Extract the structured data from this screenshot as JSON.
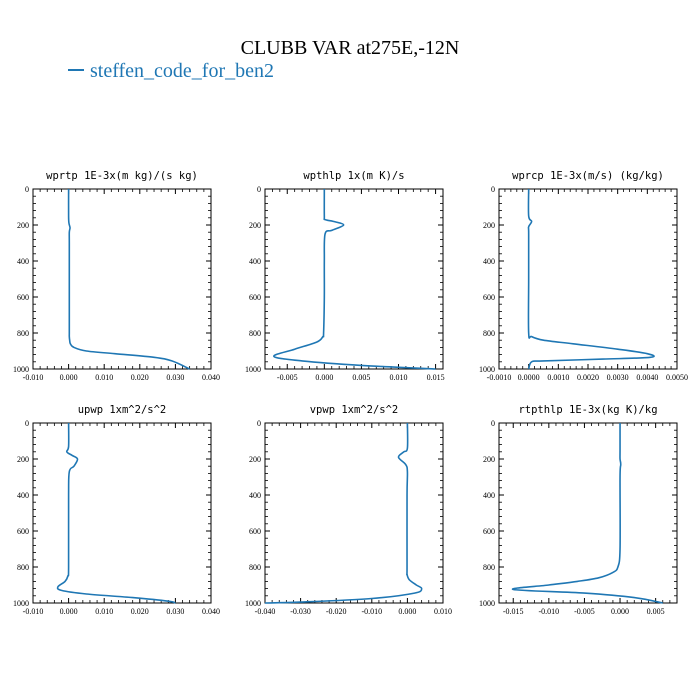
{
  "figure": {
    "title": "CLUBB VAR at275E,-12N",
    "legend": "steffen_code_for_ben2",
    "series_color": "#1f77b4"
  },
  "chart_data": [
    {
      "type": "line",
      "title": "wprtp  1E-3x(m kg)/(s kg)",
      "xlim": [
        -0.01,
        0.04
      ],
      "ylim": [
        1000,
        0
      ],
      "xticks": [
        -0.01,
        0.0,
        0.01,
        0.02,
        0.03,
        0.04
      ],
      "xtick_labels": [
        "-0.010",
        "0.000",
        "0.010",
        "0.020",
        "0.030",
        "0.040"
      ],
      "yticks": [
        0,
        200,
        400,
        600,
        800,
        1000
      ],
      "x": [
        0.0,
        0.0,
        0.0001,
        0.0004,
        0.0002,
        0.0002,
        0.0002,
        0.0002,
        0.0002,
        0.0002,
        0.0003,
        0.0005,
        0.0015,
        0.005,
        0.013,
        0.024,
        0.029,
        0.034
      ],
      "y": [
        0,
        150,
        190,
        215,
        240,
        300,
        500,
        700,
        800,
        820,
        840,
        860,
        880,
        900,
        915,
        935,
        955,
        1000
      ]
    },
    {
      "type": "line",
      "title": "wpthlp  1x(m K)/s",
      "xlim": [
        -0.008,
        0.016
      ],
      "ylim": [
        1000,
        0
      ],
      "xticks": [
        -0.005,
        0.0,
        0.005,
        0.01,
        0.015
      ],
      "xtick_labels": [
        "-0.005",
        "0.000",
        "0.005",
        "0.010",
        "0.015"
      ],
      "yticks": [
        0,
        200,
        400,
        600,
        800,
        1000
      ],
      "x": [
        0.0,
        0.0,
        0.0001,
        0.0012,
        0.0026,
        0.001,
        0.0001,
        0.0,
        0.0,
        -0.0001,
        -0.0002,
        -0.001,
        -0.004,
        -0.0068,
        -0.003,
        0.005,
        0.015
      ],
      "y": [
        0,
        150,
        170,
        180,
        200,
        230,
        250,
        400,
        600,
        800,
        820,
        850,
        890,
        930,
        955,
        980,
        1000
      ]
    },
    {
      "type": "line",
      "title": "wprcp  1E-3x(m/s) (kg/kg)",
      "xlim": [
        -0.001,
        0.005
      ],
      "ylim": [
        1000,
        0
      ],
      "xticks": [
        -0.001,
        0.0,
        0.001,
        0.002,
        0.003,
        0.004,
        0.005
      ],
      "xtick_labels": [
        "-0.0010",
        "0.0000",
        "0.0010",
        "0.0020",
        "0.0030",
        "0.0040",
        "0.0050"
      ],
      "yticks": [
        0,
        200,
        400,
        600,
        800,
        1000
      ],
      "x": [
        0.0,
        0.0,
        0.0001,
        0.0,
        0.0,
        0.0,
        0.0,
        0.0001,
        0.0005,
        0.0015,
        0.003,
        0.004,
        0.0041,
        0.0025,
        0.0005,
        0.0001,
        0.0
      ],
      "y": [
        0,
        150,
        180,
        210,
        250,
        500,
        800,
        820,
        840,
        860,
        890,
        915,
        935,
        945,
        955,
        960,
        1000
      ]
    },
    {
      "type": "line",
      "title": "upwp  1xm^2/s^2",
      "xlim": [
        -0.01,
        0.04
      ],
      "ylim": [
        1000,
        0
      ],
      "xticks": [
        -0.01,
        0.0,
        0.01,
        0.02,
        0.03,
        0.04
      ],
      "xtick_labels": [
        "-0.010",
        "0.000",
        "0.010",
        "0.020",
        "0.030",
        "0.040"
      ],
      "yticks": [
        0,
        200,
        400,
        600,
        800,
        1000
      ],
      "x": [
        0.0,
        0.0,
        -0.0005,
        0.001,
        0.0025,
        0.0015,
        0.0002,
        0.0,
        0.0,
        -0.0002,
        -0.001,
        -0.003,
        -0.002,
        0.005,
        0.018,
        0.028,
        0.03
      ],
      "y": [
        0,
        130,
        160,
        180,
        200,
        240,
        270,
        400,
        800,
        850,
        880,
        910,
        930,
        950,
        970,
        990,
        1000
      ]
    },
    {
      "type": "line",
      "title": "vpwp  1xm^2/s^2",
      "xlim": [
        -0.04,
        0.01
      ],
      "ylim": [
        1000,
        0
      ],
      "xticks": [
        -0.04,
        -0.03,
        -0.02,
        -0.01,
        0.0,
        0.01
      ],
      "xtick_labels": [
        "-0.040",
        "-0.030",
        "-0.020",
        "-0.010",
        "0.000",
        "0.010"
      ],
      "yticks": [
        0,
        200,
        400,
        600,
        800,
        1000
      ],
      "x": [
        0.0,
        0.0,
        -0.001,
        -0.0025,
        -0.0005,
        0.0,
        -0.0001,
        -0.0001,
        -0.0001,
        0.0005,
        0.0025,
        0.004,
        0.002,
        -0.01,
        -0.03,
        -0.04
      ],
      "y": [
        0,
        140,
        160,
        190,
        230,
        270,
        400,
        800,
        840,
        870,
        900,
        920,
        945,
        975,
        995,
        1000
      ]
    },
    {
      "type": "line",
      "title": "rtpthlp  1E-3x(kg K)/kg",
      "xlim": [
        -0.017,
        0.008
      ],
      "ylim": [
        1000,
        0
      ],
      "xticks": [
        -0.015,
        -0.01,
        -0.005,
        0.0,
        0.005
      ],
      "xtick_labels": [
        "-0.015",
        "-0.010",
        "-0.005",
        "0.000",
        "0.005"
      ],
      "yticks": [
        0,
        200,
        400,
        600,
        800,
        1000
      ],
      "x": [
        0.0,
        0.0,
        0.0,
        0.0001,
        0.0,
        0.0,
        -0.0003,
        -0.001,
        -0.003,
        -0.006,
        -0.01,
        -0.015,
        -0.005,
        0.002,
        0.006
      ],
      "y": [
        0,
        150,
        200,
        230,
        300,
        700,
        800,
        830,
        860,
        880,
        900,
        925,
        945,
        970,
        1000
      ]
    }
  ]
}
